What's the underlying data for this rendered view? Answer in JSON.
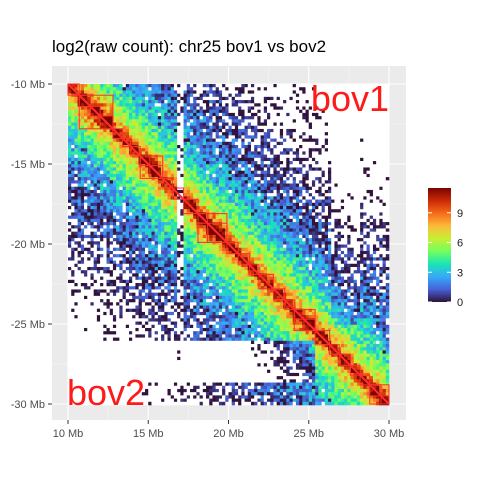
{
  "chart_data": {
    "type": "heatmap",
    "title": "log2(raw count): chr25 bov1 vs bov2",
    "x_range_mb": [
      10,
      30
    ],
    "y_range_mb": [
      10,
      30
    ],
    "x_ticks": [
      {
        "value": 10,
        "label": "10 Mb"
      },
      {
        "value": 15,
        "label": "15 Mb"
      },
      {
        "value": 20,
        "label": "20 Mb"
      },
      {
        "value": 25,
        "label": "25 Mb"
      },
      {
        "value": 30,
        "label": "30 Mb"
      }
    ],
    "y_ticks": [
      {
        "value": 10,
        "label": "-10 Mb"
      },
      {
        "value": 15,
        "label": "-15 Mb"
      },
      {
        "value": 20,
        "label": "-20 Mb"
      },
      {
        "value": 25,
        "label": "-25 Mb"
      },
      {
        "value": 30,
        "label": "-30 Mb"
      }
    ],
    "upper_triangle_label": "bov1",
    "lower_triangle_label": "bov2",
    "color_scale": {
      "min": 0,
      "max": 11.5,
      "ticks": [
        0,
        3,
        6,
        9
      ],
      "tick_labels": [
        "0",
        "3",
        "6",
        "9"
      ],
      "colors": [
        "#30123b",
        "#4662d7",
        "#36aaf9",
        "#1ae4b6",
        "#72fe5e",
        "#c7ef34",
        "#fabb39",
        "#f66b19",
        "#ca2a04",
        "#7a0403"
      ]
    },
    "grid": true,
    "panel_background": "#ebebeb",
    "tad_box_color": "#ff2d2d",
    "tads_mb": [
      [
        10.0,
        10.7
      ],
      [
        10.7,
        11.4
      ],
      [
        11.4,
        12.0
      ],
      [
        12.0,
        12.8
      ],
      [
        12.8,
        13.4
      ],
      [
        13.4,
        13.9
      ],
      [
        13.9,
        14.5
      ],
      [
        14.5,
        15.1
      ],
      [
        15.1,
        15.9
      ],
      [
        15.9,
        16.5
      ],
      [
        16.5,
        17.2
      ],
      [
        17.2,
        18.1
      ],
      [
        18.1,
        18.7
      ],
      [
        18.7,
        19.9
      ],
      [
        19.9,
        20.6
      ],
      [
        20.6,
        21.3
      ],
      [
        21.3,
        21.9
      ],
      [
        21.9,
        22.8
      ],
      [
        22.8,
        23.5
      ],
      [
        23.5,
        24.1
      ],
      [
        24.1,
        24.7
      ],
      [
        24.7,
        25.4
      ],
      [
        25.4,
        26.3
      ],
      [
        26.3,
        26.9
      ],
      [
        26.9,
        27.6
      ],
      [
        27.6,
        28.2
      ],
      [
        28.2,
        28.8
      ],
      [
        28.8,
        29.5
      ],
      [
        29.5,
        30.0
      ]
    ],
    "strong_tads_mb": [
      [
        10.7,
        12.8
      ],
      [
        14.5,
        15.9
      ],
      [
        18.1,
        19.9
      ],
      [
        24.1,
        25.4
      ],
      [
        28.8,
        30.0
      ]
    ],
    "dark_region_mb": [
      26.0,
      28.5
    ]
  }
}
